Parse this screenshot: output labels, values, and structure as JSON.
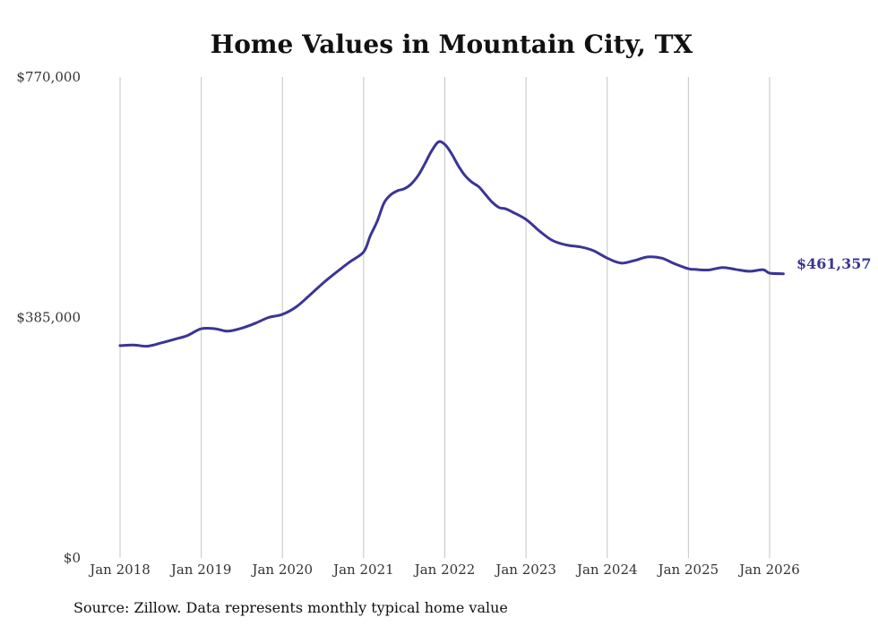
{
  "chart_data": {
    "type": "line",
    "title": "Home Values in Mountain City, TX",
    "xlabel": "",
    "ylabel": "",
    "ylim": [
      0,
      770000
    ],
    "y_ticks": [
      {
        "value": 0,
        "label": "$0"
      },
      {
        "value": 385000,
        "label": "$385,000"
      },
      {
        "value": 770000,
        "label": "$770,000"
      }
    ],
    "x_ticks": [
      {
        "value": 2018,
        "label": "Jan 2018"
      },
      {
        "value": 2019,
        "label": "Jan 2019"
      },
      {
        "value": 2020,
        "label": "Jan 2020"
      },
      {
        "value": 2021,
        "label": "Jan 2021"
      },
      {
        "value": 2022,
        "label": "Jan 2022"
      },
      {
        "value": 2023,
        "label": "Jan 2023"
      },
      {
        "value": 2024,
        "label": "Jan 2024"
      },
      {
        "value": 2025,
        "label": "Jan 2025"
      },
      {
        "value": 2026,
        "label": "Jan 2026"
      }
    ],
    "xlim": [
      2018,
      2026
    ],
    "grid": "vertical",
    "series": [
      {
        "name": "Typical home value",
        "color": "#3b3596",
        "x": [
          2018.0,
          2018.17,
          2018.33,
          2018.5,
          2018.67,
          2018.83,
          2019.0,
          2019.17,
          2019.33,
          2019.5,
          2019.67,
          2019.83,
          2020.0,
          2020.17,
          2020.33,
          2020.5,
          2020.67,
          2020.83,
          2021.0,
          2021.08,
          2021.17,
          2021.25,
          2021.33,
          2021.42,
          2021.5,
          2021.58,
          2021.67,
          2021.75,
          2021.83,
          2021.92,
          2022.0,
          2022.08,
          2022.17,
          2022.25,
          2022.33,
          2022.42,
          2022.5,
          2022.58,
          2022.67,
          2022.75,
          2022.83,
          2023.0,
          2023.17,
          2023.33,
          2023.5,
          2023.67,
          2023.83,
          2024.0,
          2024.17,
          2024.33,
          2024.5,
          2024.67,
          2024.83,
          2025.0,
          2025.08,
          2025.25,
          2025.42,
          2025.58,
          2025.75,
          2025.92,
          2026.0,
          2026.17
        ],
        "values": [
          340000,
          341000,
          339000,
          344000,
          350000,
          356000,
          367000,
          367000,
          363000,
          368000,
          376000,
          385000,
          390000,
          402000,
          420000,
          440000,
          458000,
          474000,
          490000,
          515000,
          540000,
          568000,
          581000,
          588000,
          591000,
          598000,
          612000,
          630000,
          650000,
          666000,
          662000,
          648000,
          627000,
          612000,
          602000,
          594000,
          582000,
          570000,
          561000,
          559000,
          554000,
          542000,
          523000,
          508000,
          501000,
          498000,
          492000,
          480000,
          472000,
          476000,
          482000,
          480000,
          471000,
          463000,
          462000,
          461000,
          465000,
          462000,
          459000,
          461357,
          456000,
          455000
        ]
      }
    ],
    "end_label": "$461,357"
  },
  "source_text": "Source: Zillow. Data represents monthly typical home value"
}
